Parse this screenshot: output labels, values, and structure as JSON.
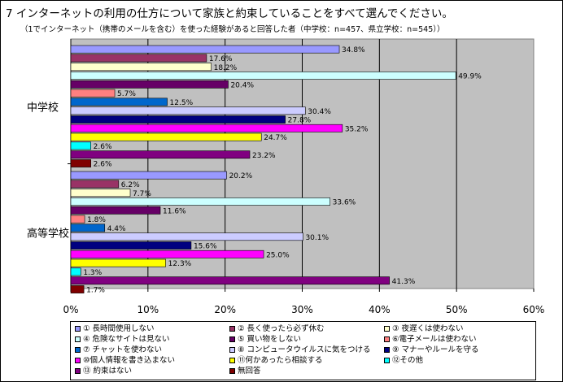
{
  "title": "7 インターネットの利用の仕方について家族と約束していることをすべて選んでください。",
  "subtitle": "（1でインターネット（携帯のメールを含む）を使った経験があると回答した者（中学校：n=457、県立学校：n=545））",
  "chart_data": {
    "type": "bar",
    "orientation": "horizontal",
    "groups": [
      "中学校",
      "高等学校"
    ],
    "xlim": [
      0,
      60
    ],
    "x_ticks": [
      "0%",
      "10%",
      "20%",
      "30%",
      "40%",
      "50%",
      "60%"
    ],
    "grid": true,
    "legend_position": "bottom",
    "series": [
      {
        "name": "① 長時間使用しない",
        "color": "#9999ff",
        "values": [
          34.8,
          20.2
        ]
      },
      {
        "name": "② 長く使ったら必ず休む",
        "color": "#993366",
        "values": [
          17.6,
          6.2
        ]
      },
      {
        "name": "③ 夜遅くは使わない",
        "color": "#ffffcc",
        "values": [
          18.2,
          7.7
        ]
      },
      {
        "name": "④ 危険なサイトは見ない",
        "color": "#ccffff",
        "values": [
          49.9,
          33.6
        ]
      },
      {
        "name": "⑤ 買い物をしない",
        "color": "#660066",
        "values": [
          20.4,
          11.6
        ]
      },
      {
        "name": "⑥電子メールは使わない",
        "color": "#ff8080",
        "values": [
          5.7,
          1.8
        ]
      },
      {
        "name": "⑦ チャットを使わない",
        "color": "#0066cc",
        "values": [
          12.5,
          4.4
        ]
      },
      {
        "name": "⑧ コンピュータウイルスに気をつける",
        "color": "#ccccff",
        "values": [
          30.4,
          30.1
        ]
      },
      {
        "name": "⑨ マナーやルールを守る",
        "color": "#000080",
        "values": [
          27.8,
          15.6
        ]
      },
      {
        "name": "⑩個人情報を書き込まない",
        "color": "#ff00ff",
        "values": [
          35.2,
          25.0
        ]
      },
      {
        "name": "⑪何かあったら相談する",
        "color": "#ffff00",
        "values": [
          24.7,
          12.3
        ]
      },
      {
        "name": "⑫その他",
        "color": "#00ffff",
        "values": [
          2.6,
          1.3
        ]
      },
      {
        "name": "⑬ 約束はない",
        "color": "#800080",
        "values": [
          23.2,
          41.3
        ]
      },
      {
        "name": "無回答",
        "color": "#800000",
        "values": [
          2.6,
          1.7
        ]
      }
    ],
    "value_labels": [
      [
        "34.8%",
        "17.6%",
        "18.2%",
        "49.9%",
        "20.4%",
        "5.7%",
        "12.5%",
        "30.4%",
        "27.8%",
        "35.2%",
        "24.7%",
        "2.6%",
        "23.2%",
        "2.6%"
      ],
      [
        "20.2%",
        "6.2%",
        "7.7%",
        "33.6%",
        "11.6%",
        "1.8%",
        "4.4%",
        "30.1%",
        "15.6%",
        "25.0%",
        "12.3%",
        "1.3%",
        "41.3%",
        "1.7%"
      ]
    ]
  }
}
